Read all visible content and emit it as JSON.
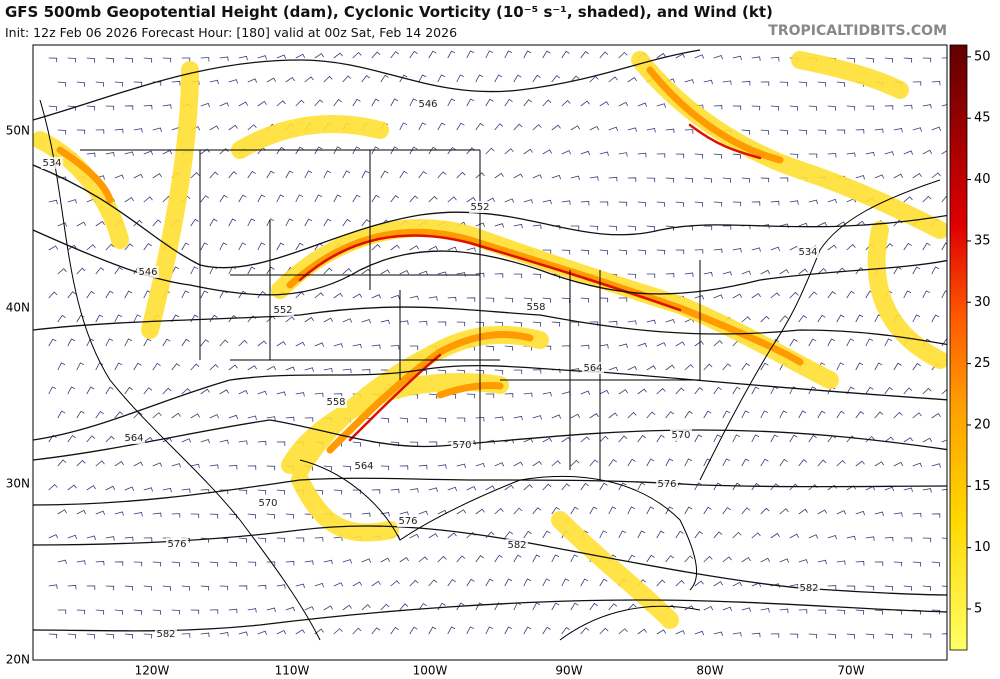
{
  "header": {
    "title": "GFS 500mb Geopotential Height (dam), Cyclonic Vorticity (10⁻⁵ s⁻¹, shaded), and Wind (kt)",
    "subtitle": "Init: 12z Feb 06 2026   Forecast Hour: [180]   valid at 00z Sat, Feb 14 2026",
    "source": "TROPICALTIDBITS.COM"
  },
  "map": {
    "lat_labels": [
      "50N",
      "40N",
      "30N",
      "20N"
    ],
    "lon_labels": [
      "120W",
      "110W",
      "100W",
      "90W",
      "80W",
      "70W"
    ],
    "contour_labels": [
      546,
      534,
      552,
      546,
      534,
      552,
      558,
      564,
      558,
      564,
      570,
      570,
      564,
      576,
      570,
      576,
      576,
      582,
      582,
      582
    ]
  },
  "colorbar": {
    "ticks": [
      5,
      10,
      15,
      20,
      25,
      30,
      35,
      40,
      45,
      50
    ]
  }
}
